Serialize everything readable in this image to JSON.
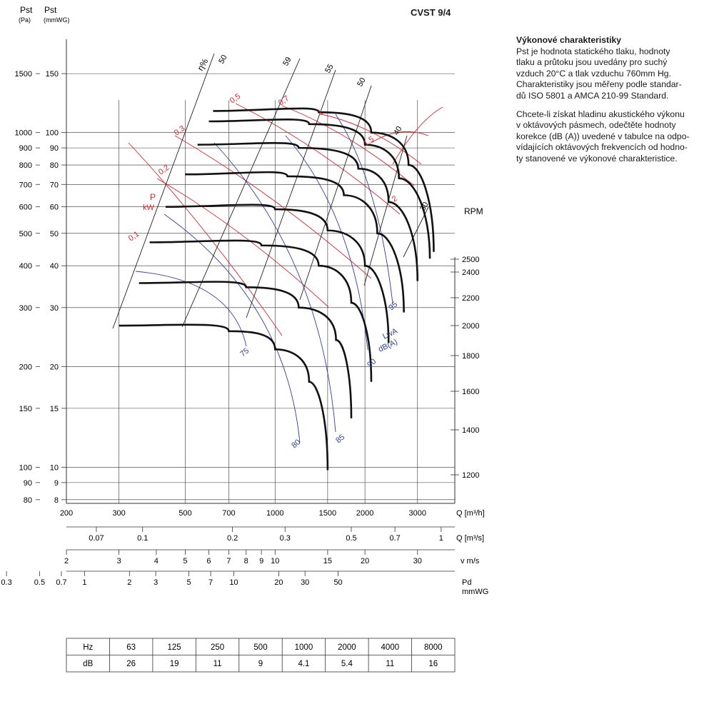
{
  "header": {
    "model": "CVST 9/4",
    "pa_label": "Pst",
    "pa_unit": "(Pa)",
    "mm_label": "Pst",
    "mm_unit": "(mmWG)"
  },
  "description": {
    "title": "Výkonové charakteristiky",
    "paragraph1": "Pst je hodnota statického tlaku, hodnoty\ntlaku a průtoku jsou uvedány pro suchý\nvzduch 20°C a tlak vzduchu 760mm Hg.\nCharakteristiky jsou měřeny podle standar-\ndů ISO 5801 a AMCA 210-99 Standard.",
    "paragraph2": "Chcete-li získat hladinu akustického výkonu\nv oktávových pásmech, odečtěte hodnoty\nkorekce (dB (A)) uvedené v tabulce na odpo-\nvídajících oktávových frekvencích od hodno-\nty stanovené ve výkonové charakteristice."
  },
  "colors": {
    "curve": "#111111",
    "power": "#d6242a",
    "noise": "#2f3f9a",
    "grid": "#333333"
  },
  "chart_data": {
    "type": "line",
    "y_axis_pa": {
      "ticks": [
        80,
        90,
        100,
        150,
        200,
        300,
        400,
        500,
        600,
        700,
        800,
        900,
        1000,
        1500
      ],
      "log": true
    },
    "y_axis_mmwg": {
      "ticks": [
        8,
        9,
        10,
        15,
        20,
        30,
        40,
        50,
        60,
        70,
        80,
        90,
        100,
        150
      ],
      "log": true
    },
    "x_axis": {
      "label": "Q [m³/h]",
      "ticks": [
        200,
        300,
        500,
        700,
        1000,
        1500,
        2000,
        3000
      ],
      "range": [
        200,
        4000
      ],
      "log": true
    },
    "q_m3s": {
      "label": "Q [m³/s]",
      "ticks": [
        "0.07",
        "0.1",
        "0.2",
        "0.3",
        "0.5",
        "0.7",
        "1"
      ]
    },
    "velocity": {
      "label": "v m/s",
      "ticks": [
        "2",
        "3",
        "4",
        "5",
        "6",
        "7",
        "8",
        "9",
        "10",
        "15",
        "20",
        "30"
      ]
    },
    "dynamic_pressure": {
      "label": "Pd",
      "unit": "mmWG",
      "ticks": [
        "0.3",
        "0.5",
        "0.7",
        "1",
        "2",
        "3",
        "5",
        "7",
        "10",
        "20",
        "30",
        "50"
      ]
    },
    "rpm_axis": {
      "label": "RPM",
      "ticks": [
        1200,
        1400,
        1600,
        1800,
        2000,
        2200,
        2400,
        2500
      ]
    },
    "efficiency_label": "η%",
    "efficiency_lines": [
      "50",
      "59",
      "55",
      "50",
      "40",
      "30"
    ],
    "power_label": "P",
    "power_unit": "kW",
    "power_lines": [
      "0,1",
      "0,2",
      "0,3",
      "0,5",
      "0,7",
      "1",
      "1,5",
      "2"
    ],
    "noise_label": "LwA",
    "noise_unit": "dB(A)",
    "noise_lines": [
      "75",
      "80",
      "85",
      "90",
      "95"
    ],
    "series": [
      {
        "name": "1200",
        "q": [
          300,
          700,
          1000,
          1300,
          1500
        ],
        "pst": [
          265,
          255,
          225,
          180,
          98
        ]
      },
      {
        "name": "1400",
        "q": [
          350,
          800,
          1200,
          1600,
          1800
        ],
        "pst": [
          355,
          345,
          300,
          240,
          140
        ]
      },
      {
        "name": "1600",
        "q": [
          380,
          900,
          1400,
          1800,
          2100
        ],
        "pst": [
          470,
          460,
          400,
          310,
          180
        ]
      },
      {
        "name": "1800",
        "q": [
          430,
          1000,
          1500,
          2000,
          2400
        ],
        "pst": [
          600,
          590,
          510,
          400,
          235
        ]
      },
      {
        "name": "2000",
        "q": [
          500,
          1100,
          1700,
          2200,
          2700
        ],
        "pst": [
          750,
          740,
          650,
          500,
          290
        ]
      },
      {
        "name": "2200",
        "q": [
          550,
          1200,
          1900,
          2400,
          3000
        ],
        "pst": [
          920,
          900,
          780,
          620,
          360
        ]
      },
      {
        "name": "2400",
        "q": [
          600,
          1300,
          2000,
          2600,
          3300
        ],
        "pst": [
          1080,
          1060,
          920,
          730,
          420
        ]
      },
      {
        "name": "2500",
        "q": [
          620,
          1400,
          2100,
          2800,
          3400
        ],
        "pst": [
          1160,
          1150,
          1000,
          800,
          440
        ]
      }
    ]
  },
  "octave_table": {
    "row1_label": "Hz",
    "row2_label": "dB",
    "hz": [
      "63",
      "125",
      "250",
      "500",
      "1000",
      "2000",
      "4000",
      "8000"
    ],
    "db": [
      "26",
      "19",
      "11",
      "9",
      "4.1",
      "5.4",
      "11",
      "16"
    ]
  }
}
